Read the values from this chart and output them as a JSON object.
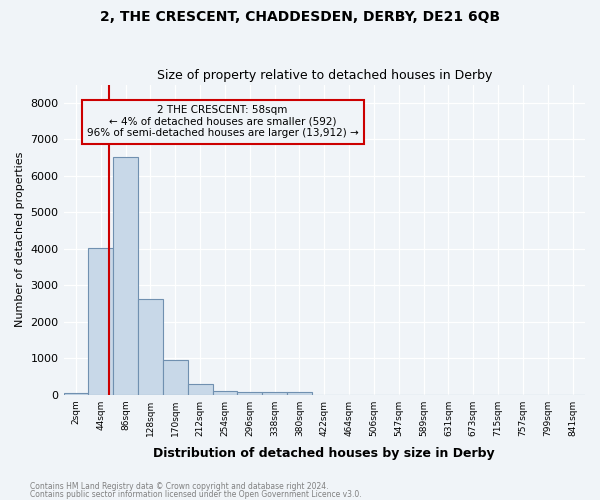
{
  "title": "2, THE CRESCENT, CHADDESDEN, DERBY, DE21 6QB",
  "subtitle": "Size of property relative to detached houses in Derby",
  "xlabel": "Distribution of detached houses by size in Derby",
  "ylabel": "Number of detached properties",
  "footnote1": "Contains HM Land Registry data © Crown copyright and database right 2024.",
  "footnote2": "Contains public sector information licensed under the Open Government Licence v3.0.",
  "bin_labels": [
    "2sqm",
    "44sqm",
    "86sqm",
    "128sqm",
    "170sqm",
    "212sqm",
    "254sqm",
    "296sqm",
    "338sqm",
    "380sqm",
    "422sqm",
    "464sqm",
    "506sqm",
    "547sqm",
    "589sqm",
    "631sqm",
    "673sqm",
    "715sqm",
    "757sqm",
    "799sqm",
    "841sqm"
  ],
  "bar_values": [
    40,
    4020,
    6520,
    2620,
    950,
    280,
    100,
    65,
    65,
    70,
    0,
    0,
    0,
    0,
    0,
    0,
    0,
    0,
    0,
    0,
    0
  ],
  "bar_color": "#c8d8e8",
  "bar_edge_color": "#7090b0",
  "ylim": [
    0,
    8500
  ],
  "yticks": [
    0,
    1000,
    2000,
    3000,
    4000,
    5000,
    6000,
    7000,
    8000
  ],
  "property_line_x": 1.35,
  "property_line_color": "#cc0000",
  "annotation_text": "2 THE CRESCENT: 58sqm\n← 4% of detached houses are smaller (592)\n96% of semi-detached houses are larger (13,912) →",
  "annotation_box_color": "#cc0000",
  "background_color": "#f0f4f8",
  "grid_color": "#ffffff"
}
